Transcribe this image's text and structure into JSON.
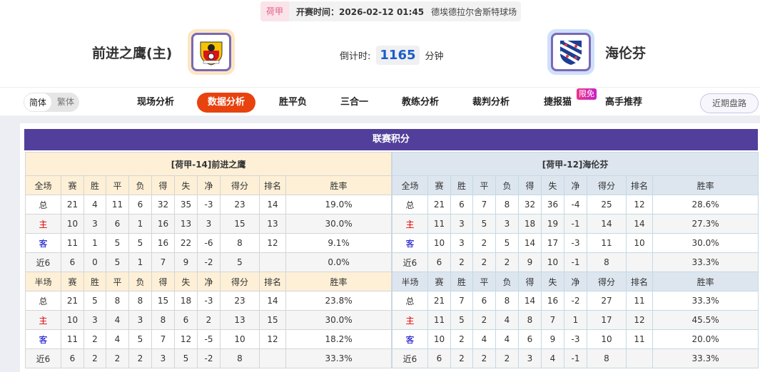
{
  "header": {
    "league": "荷甲",
    "start_time": "开赛时间：2026-02-12 01:45",
    "venue": "德埃德拉尔舍斯特球场",
    "home_team": "前进之鹰(主)",
    "away_team": "海伦芬",
    "countdown_label": "倒计时:",
    "countdown_value": "1165",
    "countdown_unit": "分钟"
  },
  "nav": {
    "lang": [
      "简体",
      "繁体"
    ],
    "items": [
      "现场分析",
      "数据分析",
      "胜平负",
      "三合一",
      "教练分析",
      "裁判分析",
      "捷报猫",
      "高手推荐"
    ],
    "active": "数据分析",
    "free_badge": "限免",
    "recent": "近期盘路"
  },
  "standings": {
    "title": "联赛积分",
    "columns": [
      "赛",
      "胜",
      "平",
      "负",
      "得",
      "失",
      "净",
      "得分",
      "排名",
      "胜率"
    ],
    "home": {
      "name": "[荷甲-14]前进之鹰",
      "full": {
        "label": "全场",
        "rows": [
          [
            "总",
            "21",
            "4",
            "11",
            "6",
            "32",
            "35",
            "-3",
            "23",
            "14",
            "19.0%"
          ],
          [
            "主",
            "10",
            "3",
            "6",
            "1",
            "16",
            "13",
            "3",
            "15",
            "13",
            "30.0%"
          ],
          [
            "客",
            "11",
            "1",
            "5",
            "5",
            "16",
            "22",
            "-6",
            "8",
            "12",
            "9.1%"
          ],
          [
            "近6",
            "6",
            "0",
            "5",
            "1",
            "7",
            "9",
            "-2",
            "5",
            "",
            "0.0%"
          ]
        ]
      },
      "half": {
        "label": "半场",
        "rows": [
          [
            "总",
            "21",
            "5",
            "8",
            "8",
            "15",
            "18",
            "-3",
            "23",
            "14",
            "23.8%"
          ],
          [
            "主",
            "10",
            "3",
            "4",
            "3",
            "8",
            "6",
            "2",
            "13",
            "15",
            "30.0%"
          ],
          [
            "客",
            "11",
            "2",
            "4",
            "5",
            "7",
            "12",
            "-5",
            "10",
            "12",
            "18.2%"
          ],
          [
            "近6",
            "6",
            "2",
            "2",
            "2",
            "3",
            "5",
            "-2",
            "8",
            "",
            "33.3%"
          ]
        ]
      }
    },
    "away": {
      "name": "[荷甲-12]海伦芬",
      "full": {
        "label": "全场",
        "rows": [
          [
            "总",
            "21",
            "6",
            "7",
            "8",
            "32",
            "36",
            "-4",
            "25",
            "12",
            "28.6%"
          ],
          [
            "主",
            "11",
            "3",
            "5",
            "3",
            "18",
            "19",
            "-1",
            "14",
            "14",
            "27.3%"
          ],
          [
            "客",
            "10",
            "3",
            "2",
            "5",
            "14",
            "17",
            "-3",
            "11",
            "10",
            "30.0%"
          ],
          [
            "近6",
            "6",
            "2",
            "2",
            "2",
            "9",
            "10",
            "-1",
            "8",
            "",
            "33.3%"
          ]
        ]
      },
      "half": {
        "label": "半场",
        "rows": [
          [
            "总",
            "21",
            "7",
            "6",
            "8",
            "14",
            "16",
            "-2",
            "27",
            "11",
            "33.3%"
          ],
          [
            "主",
            "11",
            "5",
            "2",
            "4",
            "8",
            "7",
            "1",
            "17",
            "12",
            "45.5%"
          ],
          [
            "客",
            "10",
            "2",
            "4",
            "4",
            "6",
            "9",
            "-3",
            "10",
            "11",
            "20.0%"
          ],
          [
            "近6",
            "6",
            "2",
            "2",
            "2",
            "3",
            "4",
            "-1",
            "8",
            "",
            "33.3%"
          ]
        ]
      }
    }
  }
}
